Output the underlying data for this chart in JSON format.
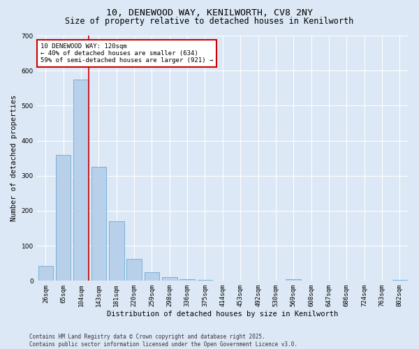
{
  "title1": "10, DENEWOOD WAY, KENILWORTH, CV8 2NY",
  "title2": "Size of property relative to detached houses in Kenilworth",
  "xlabel": "Distribution of detached houses by size in Kenilworth",
  "ylabel": "Number of detached properties",
  "categories": [
    "26sqm",
    "65sqm",
    "104sqm",
    "143sqm",
    "181sqm",
    "220sqm",
    "259sqm",
    "298sqm",
    "336sqm",
    "375sqm",
    "414sqm",
    "453sqm",
    "492sqm",
    "530sqm",
    "569sqm",
    "608sqm",
    "647sqm",
    "686sqm",
    "724sqm",
    "763sqm",
    "802sqm"
  ],
  "values": [
    43,
    360,
    575,
    325,
    170,
    62,
    25,
    10,
    5,
    2,
    0,
    0,
    0,
    0,
    4,
    0,
    0,
    0,
    0,
    0,
    2
  ],
  "bar_color": "#b8d0ea",
  "bar_edge_color": "#6aaad4",
  "vline_color": "#cc0000",
  "annotation_text": "10 DENEWOOD WAY: 120sqm\n← 40% of detached houses are smaller (634)\n59% of semi-detached houses are larger (921) →",
  "annotation_box_color": "#ffffff",
  "annotation_box_edge_color": "#cc0000",
  "ylim": [
    0,
    700
  ],
  "yticks": [
    0,
    100,
    200,
    300,
    400,
    500,
    600,
    700
  ],
  "background_color": "#dce8f5",
  "plot_background_color": "#dce8f5",
  "grid_color": "#ffffff",
  "footer_text": "Contains HM Land Registry data © Crown copyright and database right 2025.\nContains public sector information licensed under the Open Government Licence v3.0.",
  "title1_fontsize": 9.5,
  "title2_fontsize": 8.5,
  "xlabel_fontsize": 7.5,
  "ylabel_fontsize": 7.5,
  "tick_fontsize": 6.5,
  "annotation_fontsize": 6.5,
  "footer_fontsize": 5.5
}
